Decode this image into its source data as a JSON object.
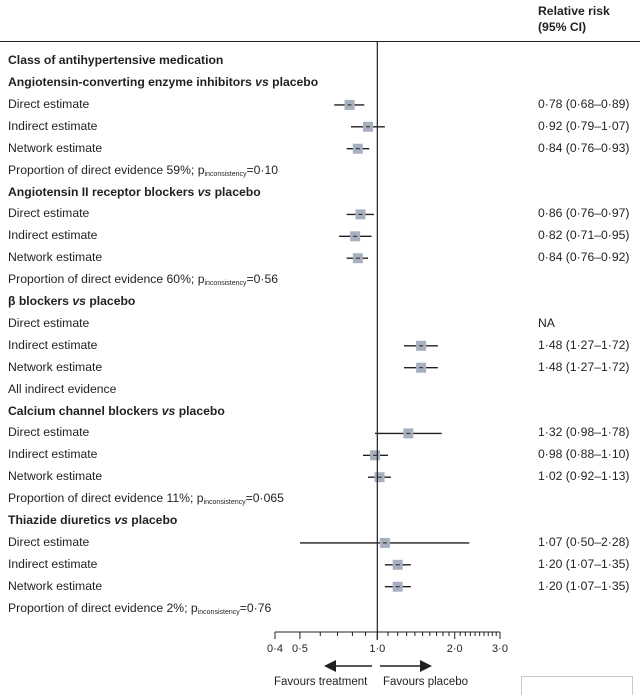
{
  "header": {
    "relative_risk_line1": "Relative risk",
    "relative_risk_line2": "(95% CI)"
  },
  "title": "Class of antihypertensive medication",
  "footer": {
    "favours_treatment": "Favours treatment",
    "favours_placebo": "Favours placebo"
  },
  "chart_data": {
    "type": "forest",
    "x_scale": "log",
    "xlim": [
      0.4,
      3.0
    ],
    "ticks": [
      0.4,
      0.5,
      1.0,
      2.0,
      3.0
    ],
    "tick_labels": [
      "0·4",
      "0·5",
      "1·0",
      "2·0",
      "3·0"
    ],
    "reference_line": 1.0,
    "groups": [
      {
        "name_prefix": "Angiotensin-converting enzyme inhibitors",
        "name_vs": " vs ",
        "name_suffix": "placebo",
        "rows": [
          {
            "label": "Direct estimate",
            "point": 0.78,
            "lower": 0.68,
            "upper": 0.89,
            "text": "0·78 (0·68–0·89)"
          },
          {
            "label": "Indirect estimate",
            "point": 0.92,
            "lower": 0.79,
            "upper": 1.07,
            "text": "0·92 (0·79–1·07)"
          },
          {
            "label": "Network estimate",
            "point": 0.84,
            "lower": 0.76,
            "upper": 0.93,
            "text": "0·84 (0·76–0·93)"
          }
        ],
        "note_main": "Proportion of direct evidence 59%; p",
        "note_sub": "inconsistency",
        "note_tail": "=0·10"
      },
      {
        "name_prefix": "Angiotensin II receptor blockers",
        "name_vs": " vs ",
        "name_suffix": "placebo",
        "rows": [
          {
            "label": "Direct estimate",
            "point": 0.86,
            "lower": 0.76,
            "upper": 0.97,
            "text": "0·86 (0·76–0·97)"
          },
          {
            "label": "Indirect estimate",
            "point": 0.82,
            "lower": 0.71,
            "upper": 0.95,
            "text": "0·82 (0·71–0·95)"
          },
          {
            "label": "Network estimate",
            "point": 0.84,
            "lower": 0.76,
            "upper": 0.92,
            "text": "0·84 (0·76–0·92)"
          }
        ],
        "note_main": "Proportion of direct evidence 60%; p",
        "note_sub": "inconsistency",
        "note_tail": "=0·56"
      },
      {
        "name_prefix": "β blockers",
        "name_vs": " vs ",
        "name_suffix": "placebo",
        "rows": [
          {
            "label": "Direct estimate",
            "point": null,
            "lower": null,
            "upper": null,
            "text": "NA"
          },
          {
            "label": "Indirect estimate",
            "point": 1.48,
            "lower": 1.27,
            "upper": 1.72,
            "text": "1·48 (1·27–1·72)"
          },
          {
            "label": "Network estimate",
            "point": 1.48,
            "lower": 1.27,
            "upper": 1.72,
            "text": "1·48 (1·27–1·72)"
          }
        ],
        "note_main": "All indirect evidence",
        "note_sub": "",
        "note_tail": ""
      },
      {
        "name_prefix": "Calcium channel blockers",
        "name_vs": " vs ",
        "name_suffix": "placebo",
        "rows": [
          {
            "label": "Direct estimate",
            "point": 1.32,
            "lower": 0.98,
            "upper": 1.78,
            "text": "1·32 (0·98–1·78)"
          },
          {
            "label": "Indirect estimate",
            "point": 0.98,
            "lower": 0.88,
            "upper": 1.1,
            "text": "0·98 (0·88–1·10)"
          },
          {
            "label": "Network estimate",
            "point": 1.02,
            "lower": 0.92,
            "upper": 1.13,
            "text": "1·02 (0·92–1·13)"
          }
        ],
        "note_main": "Proportion of direct evidence 11%; p",
        "note_sub": "inconsistency",
        "note_tail": "=0·065"
      },
      {
        "name_prefix": "Thiazide diuretics",
        "name_vs": " vs ",
        "name_suffix": "placebo",
        "rows": [
          {
            "label": "Direct estimate",
            "point": 1.07,
            "lower": 0.5,
            "upper": 2.28,
            "text": "1·07 (0·50–2·28)"
          },
          {
            "label": "Indirect estimate",
            "point": 1.2,
            "lower": 1.07,
            "upper": 1.35,
            "text": "1·20 (1·07–1·35)"
          },
          {
            "label": "Network estimate",
            "point": 1.2,
            "lower": 1.07,
            "upper": 1.35,
            "text": "1·20 (1·07–1·35)"
          }
        ],
        "note_main": "Proportion of direct evidence 2%; p",
        "note_sub": "inconsistency",
        "note_tail": "=0·76"
      }
    ]
  }
}
